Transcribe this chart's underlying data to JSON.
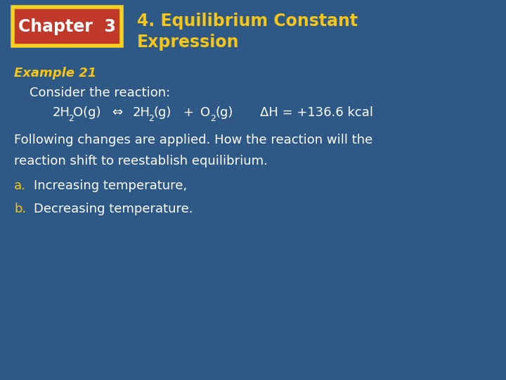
{
  "bg_color": "#2e5986",
  "chapter_box_bg": "#c0392b",
  "chapter_box_border": "#f5d020",
  "chapter_text": "Chapter  3",
  "chapter_text_color": "#ffffff",
  "title_text_line1": "4. Equilibrium Constant",
  "title_text_line2": "Expression",
  "title_color": "#f5c518",
  "example_label": "Example 21",
  "example_color": "#f5c518",
  "body_color": "#ffffff",
  "consider_text": "Consider the reaction:",
  "arrow": "⇔",
  "dh": "ΔH = +136.6 kcal",
  "line1": "Following changes are applied. How the reaction will the",
  "line2": "reaction shift to reestablish equilibrium.",
  "item_a_label": "a.",
  "item_a_text": "Increasing temperature,",
  "item_b_label": "b.",
  "item_b_text": "Decreasing temperature."
}
